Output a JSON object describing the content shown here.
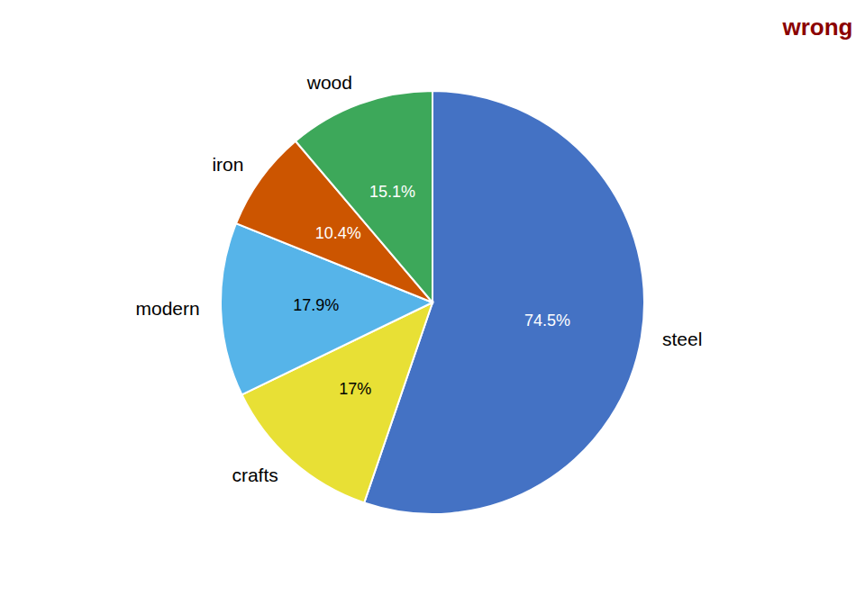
{
  "chart_data": {
    "type": "pie",
    "categories": [
      "steel",
      "crafts",
      "modern",
      "iron",
      "wood"
    ],
    "values": [
      74.5,
      17,
      17.9,
      10.4,
      15.1
    ],
    "value_labels": [
      "74.5%",
      "17%",
      "17.9%",
      "10.4%",
      "15.1%"
    ],
    "colors": [
      "#4472C4",
      "#E8E035",
      "#56B4E9",
      "#CC5500",
      "#3DA85A"
    ],
    "data_labels": true,
    "annotations": [
      {
        "text": "wrong",
        "color": "#8B0000"
      }
    ]
  }
}
